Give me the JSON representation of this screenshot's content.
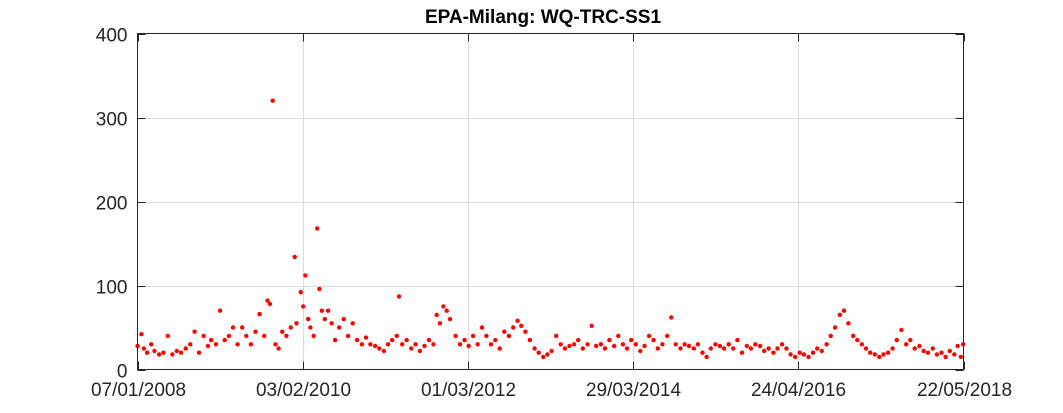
{
  "chart_data": {
    "type": "scatter",
    "title": "EPA-Milang: WQ-TRC-SS1",
    "xlabel": "",
    "ylabel": "",
    "x_axis_type": "date",
    "xlim": [
      "2008-01-07",
      "2018-05-22"
    ],
    "ylim": [
      0,
      400
    ],
    "x_ticks": [
      "2008-01-07",
      "2010-02-03",
      "2012-03-01",
      "2014-03-29",
      "2016-04-24",
      "2018-05-22"
    ],
    "x_tick_labels": [
      "07/01/2008",
      "03/02/2010",
      "01/03/2012",
      "29/03/2014",
      "24/04/2016",
      "22/05/2018"
    ],
    "y_ticks": [
      0,
      100,
      200,
      300,
      400
    ],
    "y_tick_labels": [
      "0",
      "100",
      "200",
      "300",
      "400"
    ],
    "grid": true,
    "marker_color": "#ff0000",
    "series": [
      {
        "points": [
          [
            "2008-01-07",
            28
          ],
          [
            "2008-01-25",
            42
          ],
          [
            "2008-02-05",
            25
          ],
          [
            "2008-02-20",
            20
          ],
          [
            "2008-03-10",
            30
          ],
          [
            "2008-03-25",
            22
          ],
          [
            "2008-04-15",
            18
          ],
          [
            "2008-05-05",
            20
          ],
          [
            "2008-05-25",
            40
          ],
          [
            "2008-06-15",
            18
          ],
          [
            "2008-07-05",
            22
          ],
          [
            "2008-07-25",
            20
          ],
          [
            "2008-08-15",
            25
          ],
          [
            "2008-09-05",
            30
          ],
          [
            "2008-09-25",
            45
          ],
          [
            "2008-10-15",
            20
          ],
          [
            "2008-11-05",
            40
          ],
          [
            "2008-11-25",
            28
          ],
          [
            "2008-12-10",
            35
          ],
          [
            "2009-01-01",
            30
          ],
          [
            "2009-01-20",
            70
          ],
          [
            "2009-02-10",
            35
          ],
          [
            "2009-03-01",
            40
          ],
          [
            "2009-03-20",
            50
          ],
          [
            "2009-04-10",
            30
          ],
          [
            "2009-05-01",
            50
          ],
          [
            "2009-05-20",
            40
          ],
          [
            "2009-06-10",
            30
          ],
          [
            "2009-07-01",
            45
          ],
          [
            "2009-07-20",
            66
          ],
          [
            "2009-08-10",
            40
          ],
          [
            "2009-08-25",
            82
          ],
          [
            "2009-09-05",
            78
          ],
          [
            "2009-09-18",
            320
          ],
          [
            "2009-10-01",
            30
          ],
          [
            "2009-10-15",
            25
          ],
          [
            "2009-11-01",
            45
          ],
          [
            "2009-11-20",
            40
          ],
          [
            "2009-12-10",
            50
          ],
          [
            "2009-12-28",
            134
          ],
          [
            "2010-01-05",
            55
          ],
          [
            "2010-01-25",
            92
          ],
          [
            "2010-02-05",
            75
          ],
          [
            "2010-02-15",
            112
          ],
          [
            "2010-02-28",
            60
          ],
          [
            "2010-03-10",
            50
          ],
          [
            "2010-03-25",
            40
          ],
          [
            "2010-04-10",
            168
          ],
          [
            "2010-04-20",
            96
          ],
          [
            "2010-05-01",
            70
          ],
          [
            "2010-05-15",
            60
          ],
          [
            "2010-05-30",
            70
          ],
          [
            "2010-06-15",
            55
          ],
          [
            "2010-07-01",
            35
          ],
          [
            "2010-07-20",
            50
          ],
          [
            "2010-08-10",
            60
          ],
          [
            "2010-08-30",
            40
          ],
          [
            "2010-09-20",
            55
          ],
          [
            "2010-10-10",
            35
          ],
          [
            "2010-11-01",
            30
          ],
          [
            "2010-11-20",
            38
          ],
          [
            "2010-12-10",
            30
          ],
          [
            "2011-01-01",
            28
          ],
          [
            "2011-01-20",
            25
          ],
          [
            "2011-02-10",
            22
          ],
          [
            "2011-03-01",
            30
          ],
          [
            "2011-03-20",
            35
          ],
          [
            "2011-04-10",
            40
          ],
          [
            "2011-04-20",
            87
          ],
          [
            "2011-05-05",
            30
          ],
          [
            "2011-05-25",
            35
          ],
          [
            "2011-06-15",
            25
          ],
          [
            "2011-07-05",
            30
          ],
          [
            "2011-07-25",
            22
          ],
          [
            "2011-08-15",
            28
          ],
          [
            "2011-09-05",
            35
          ],
          [
            "2011-09-25",
            30
          ],
          [
            "2011-10-10",
            65
          ],
          [
            "2011-10-25",
            55
          ],
          [
            "2011-11-10",
            75
          ],
          [
            "2011-11-25",
            70
          ],
          [
            "2011-12-10",
            60
          ],
          [
            "2012-01-05",
            40
          ],
          [
            "2012-01-25",
            30
          ],
          [
            "2012-02-15",
            35
          ],
          [
            "2012-03-05",
            28
          ],
          [
            "2012-03-25",
            40
          ],
          [
            "2012-04-15",
            30
          ],
          [
            "2012-05-05",
            50
          ],
          [
            "2012-05-25",
            40
          ],
          [
            "2012-06-15",
            30
          ],
          [
            "2012-07-05",
            35
          ],
          [
            "2012-07-25",
            25
          ],
          [
            "2012-08-15",
            45
          ],
          [
            "2012-09-05",
            40
          ],
          [
            "2012-09-25",
            50
          ],
          [
            "2012-10-15",
            58
          ],
          [
            "2012-11-01",
            52
          ],
          [
            "2012-11-20",
            45
          ],
          [
            "2012-12-10",
            35
          ],
          [
            "2013-01-01",
            25
          ],
          [
            "2013-01-20",
            20
          ],
          [
            "2013-02-10",
            15
          ],
          [
            "2013-03-01",
            18
          ],
          [
            "2013-03-20",
            22
          ],
          [
            "2013-04-10",
            40
          ],
          [
            "2013-05-01",
            30
          ],
          [
            "2013-05-20",
            25
          ],
          [
            "2013-06-10",
            28
          ],
          [
            "2013-07-01",
            30
          ],
          [
            "2013-07-20",
            35
          ],
          [
            "2013-08-10",
            25
          ],
          [
            "2013-09-01",
            30
          ],
          [
            "2013-09-20",
            52
          ],
          [
            "2013-10-10",
            28
          ],
          [
            "2013-11-01",
            30
          ],
          [
            "2013-11-20",
            25
          ],
          [
            "2013-12-10",
            35
          ],
          [
            "2014-01-01",
            28
          ],
          [
            "2014-01-20",
            40
          ],
          [
            "2014-02-10",
            30
          ],
          [
            "2014-03-01",
            25
          ],
          [
            "2014-03-20",
            35
          ],
          [
            "2014-04-10",
            30
          ],
          [
            "2014-05-01",
            22
          ],
          [
            "2014-05-20",
            28
          ],
          [
            "2014-06-10",
            40
          ],
          [
            "2014-07-01",
            35
          ],
          [
            "2014-07-20",
            25
          ],
          [
            "2014-08-10",
            30
          ],
          [
            "2014-09-01",
            40
          ],
          [
            "2014-09-20",
            62
          ],
          [
            "2014-10-10",
            30
          ],
          [
            "2014-11-01",
            25
          ],
          [
            "2014-11-20",
            30
          ],
          [
            "2014-12-10",
            28
          ],
          [
            "2015-01-01",
            25
          ],
          [
            "2015-01-20",
            30
          ],
          [
            "2015-02-10",
            20
          ],
          [
            "2015-03-01",
            15
          ],
          [
            "2015-03-20",
            25
          ],
          [
            "2015-04-10",
            30
          ],
          [
            "2015-05-01",
            28
          ],
          [
            "2015-05-20",
            25
          ],
          [
            "2015-06-10",
            30
          ],
          [
            "2015-07-01",
            25
          ],
          [
            "2015-07-20",
            35
          ],
          [
            "2015-08-10",
            20
          ],
          [
            "2015-09-01",
            28
          ],
          [
            "2015-09-20",
            25
          ],
          [
            "2015-10-10",
            30
          ],
          [
            "2015-11-01",
            28
          ],
          [
            "2015-11-20",
            22
          ],
          [
            "2015-12-10",
            25
          ],
          [
            "2016-01-01",
            20
          ],
          [
            "2016-01-20",
            25
          ],
          [
            "2016-02-10",
            30
          ],
          [
            "2016-03-01",
            25
          ],
          [
            "2016-03-20",
            18
          ],
          [
            "2016-04-10",
            15
          ],
          [
            "2016-05-01",
            20
          ],
          [
            "2016-05-20",
            18
          ],
          [
            "2016-06-10",
            15
          ],
          [
            "2016-07-01",
            20
          ],
          [
            "2016-07-20",
            25
          ],
          [
            "2016-08-10",
            22
          ],
          [
            "2016-09-01",
            30
          ],
          [
            "2016-09-20",
            40
          ],
          [
            "2016-10-10",
            50
          ],
          [
            "2016-11-01",
            65
          ],
          [
            "2016-11-20",
            70
          ],
          [
            "2016-12-10",
            55
          ],
          [
            "2017-01-01",
            40
          ],
          [
            "2017-01-20",
            35
          ],
          [
            "2017-02-10",
            30
          ],
          [
            "2017-03-01",
            25
          ],
          [
            "2017-03-20",
            20
          ],
          [
            "2017-04-10",
            18
          ],
          [
            "2017-05-01",
            15
          ],
          [
            "2017-05-20",
            18
          ],
          [
            "2017-06-10",
            20
          ],
          [
            "2017-07-01",
            25
          ],
          [
            "2017-07-20",
            35
          ],
          [
            "2017-08-10",
            47
          ],
          [
            "2017-09-01",
            30
          ],
          [
            "2017-09-20",
            35
          ],
          [
            "2017-10-10",
            25
          ],
          [
            "2017-11-01",
            28
          ],
          [
            "2017-11-20",
            22
          ],
          [
            "2017-12-10",
            20
          ],
          [
            "2018-01-01",
            25
          ],
          [
            "2018-01-20",
            18
          ],
          [
            "2018-02-10",
            20
          ],
          [
            "2018-03-01",
            15
          ],
          [
            "2018-03-20",
            22
          ],
          [
            "2018-04-10",
            18
          ],
          [
            "2018-04-25",
            28
          ],
          [
            "2018-05-10",
            15
          ],
          [
            "2018-05-20",
            30
          ]
        ]
      }
    ]
  }
}
